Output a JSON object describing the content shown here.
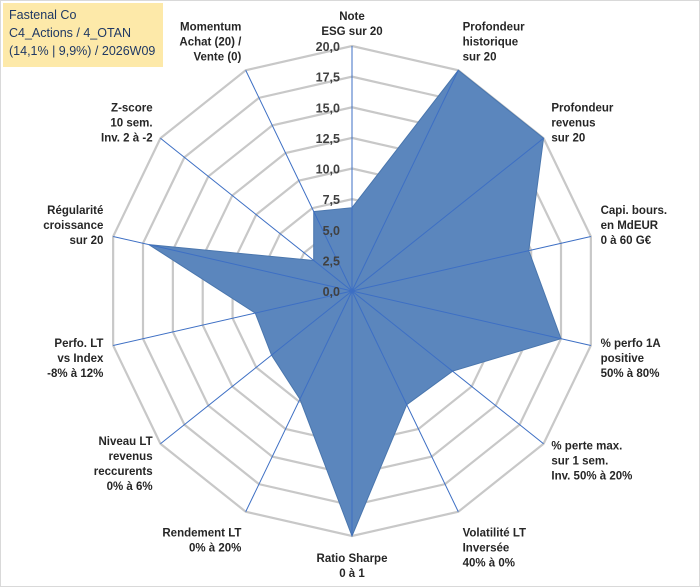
{
  "header": {
    "company": "Fastenal Co",
    "portfolio": "C4_Actions / 4_OTAN",
    "perf_week": "(14,1% | 9,9%) / 2026W09"
  },
  "chart_data": {
    "type": "radar",
    "series": [
      {
        "name": "Fastenal Co",
        "color": "#5b86bd",
        "values": [
          6.8,
          20.0,
          20.0,
          14.8,
          17.5,
          10.5,
          10.3,
          20.0,
          9.8,
          8.4,
          8.1,
          17.0,
          4.0,
          7.2
        ]
      }
    ],
    "categories": [
      [
        "Note",
        "ESG sur 20"
      ],
      [
        "Profondeur",
        "historique",
        "sur 20"
      ],
      [
        "Profondeur",
        "revenus",
        "sur 20"
      ],
      [
        "Capi. bours.",
        "en MdEUR",
        "0 à 60 G€"
      ],
      [
        "% perfo 1A",
        "positive",
        "50% à 80%"
      ],
      [
        "% perte max.",
        "sur 1 sem.",
        "Inv. 50% à 20%"
      ],
      [
        "Volatilité LT",
        "Inversée",
        "40% à 0%"
      ],
      [
        "Ratio Sharpe",
        "0 à 1"
      ],
      [
        "Rendement LT",
        "0% à 20%"
      ],
      [
        "Niveau LT",
        "revenus",
        "reccurents",
        "0% à 6%"
      ],
      [
        "Perfo. LT",
        "vs Index",
        "-8% à 12%"
      ],
      [
        "Régularité",
        "croissance",
        "sur 20"
      ],
      [
        "Z-score",
        "10 sem.",
        "Inv. 2 à -2"
      ],
      [
        "Momentum",
        "Achat (20) /",
        "Vente (0)"
      ]
    ],
    "rlim": [
      0,
      20
    ],
    "rticks": [
      "0,0",
      "2,5",
      "5,0",
      "7,5",
      "10,0",
      "12,5",
      "15,0",
      "17,5",
      "20,0"
    ]
  }
}
